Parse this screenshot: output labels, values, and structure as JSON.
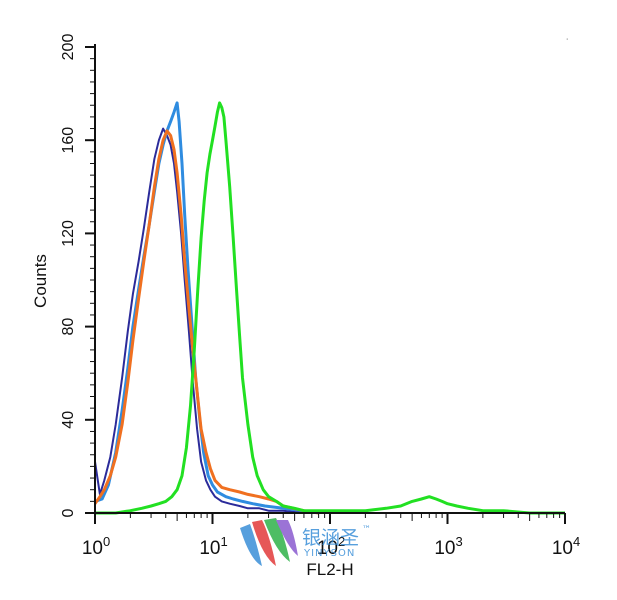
{
  "chart_data": {
    "type": "line",
    "xlabel": "FL2-H",
    "ylabel": "Counts",
    "xscale": "log",
    "xlim": [
      1,
      10000
    ],
    "ylim": [
      0,
      200
    ],
    "x_ticks": [
      {
        "value": 1,
        "base": "10",
        "exp": "0"
      },
      {
        "value": 10,
        "base": "10",
        "exp": "1"
      },
      {
        "value": 100,
        "base": "10",
        "exp": "2"
      },
      {
        "value": 1000,
        "base": "10",
        "exp": "3"
      },
      {
        "value": 10000,
        "base": "10",
        "exp": "4"
      }
    ],
    "y_ticks": [
      "0",
      "40",
      "80",
      "120",
      "160",
      "200"
    ],
    "grid": false,
    "series": [
      {
        "color": "#2b2b9a",
        "x": [
          1.0,
          1.1,
          1.2,
          1.35,
          1.5,
          1.7,
          1.9,
          2.1,
          2.35,
          2.6,
          2.9,
          3.2,
          3.5,
          3.8,
          4.1,
          4.4,
          4.7,
          5.0,
          5.4,
          5.8,
          6.3,
          6.8,
          7.4,
          8.0,
          8.8,
          9.6,
          10.5,
          12.0,
          14.0,
          17.0,
          20.0,
          25.0,
          30.0,
          40.0,
          60.0
        ],
        "y": [
          22,
          8,
          14,
          24,
          38,
          58,
          78,
          94,
          108,
          122,
          138,
          152,
          160,
          165,
          162,
          158,
          150,
          138,
          120,
          100,
          78,
          56,
          36,
          22,
          14,
          10,
          7,
          5,
          4,
          3,
          2,
          2,
          1,
          1,
          0
        ]
      },
      {
        "color": "#2f8ce0",
        "x": [
          1.0,
          1.15,
          1.3,
          1.5,
          1.7,
          1.9,
          2.1,
          2.35,
          2.6,
          2.9,
          3.2,
          3.5,
          3.8,
          4.1,
          4.4,
          4.7,
          5.0,
          5.2,
          5.5,
          5.8,
          6.2,
          6.7,
          7.2,
          7.8,
          8.4,
          9.2,
          10.0,
          11.0,
          13.0,
          15.0,
          18.0,
          22.0,
          28.0,
          40.0,
          60.0
        ],
        "y": [
          5,
          6,
          12,
          26,
          44,
          62,
          80,
          96,
          110,
          124,
          138,
          150,
          158,
          164,
          168,
          172,
          176,
          168,
          150,
          128,
          104,
          80,
          58,
          40,
          26,
          16,
          12,
          9,
          7,
          6,
          5,
          4,
          3,
          2,
          1
        ]
      },
      {
        "color": "#f07020",
        "x": [
          1.0,
          1.1,
          1.2,
          1.35,
          1.5,
          1.7,
          1.9,
          2.1,
          2.35,
          2.6,
          2.9,
          3.2,
          3.5,
          3.8,
          4.1,
          4.4,
          4.7,
          5.0,
          5.4,
          5.8,
          6.3,
          6.8,
          7.4,
          8.0,
          8.8,
          9.6,
          10.5,
          12.0,
          14.0,
          17.0,
          20.0,
          25.0,
          30.0,
          35.0,
          40.0,
          60.0,
          80.0
        ],
        "y": [
          4,
          7,
          10,
          16,
          24,
          38,
          56,
          74,
          92,
          108,
          124,
          140,
          152,
          160,
          164,
          162,
          156,
          146,
          128,
          108,
          88,
          70,
          52,
          36,
          26,
          19,
          14,
          11,
          10,
          9,
          8,
          7,
          6,
          5,
          3,
          1,
          0
        ]
      },
      {
        "color": "#22e022",
        "x": [
          1.0,
          1.5,
          2.0,
          2.5,
          3.0,
          3.5,
          4.0,
          4.5,
          5.0,
          5.5,
          6.0,
          6.5,
          7.0,
          7.5,
          8.0,
          8.5,
          9.0,
          9.5,
          10.0,
          10.5,
          11.0,
          11.5,
          12.0,
          12.5,
          13.0,
          14.0,
          15.0,
          16.0,
          17.0,
          18.0,
          20.0,
          22.0,
          24.0,
          27.0,
          30.0,
          35.0,
          40.0,
          50.0,
          60.0,
          80.0,
          100.0,
          150.0,
          200.0,
          300.0,
          400.0,
          500.0,
          600.0,
          700.0,
          800.0,
          900.0,
          1000.0,
          1200.0,
          1500.0,
          2000.0,
          3000.0,
          5000.0,
          10000.0
        ],
        "y": [
          0,
          0,
          1,
          2,
          3,
          4,
          5,
          7,
          10,
          16,
          28,
          46,
          70,
          96,
          118,
          134,
          146,
          154,
          160,
          166,
          172,
          176,
          174,
          170,
          160,
          140,
          118,
          96,
          76,
          58,
          38,
          24,
          16,
          10,
          7,
          5,
          3,
          2,
          1,
          1,
          1,
          1,
          1,
          2,
          3,
          5,
          6,
          7,
          6,
          5,
          4,
          3,
          2,
          1,
          1,
          0,
          0
        ]
      }
    ]
  },
  "watermark": {
    "chinese": "银涵圣",
    "tm": "™",
    "latin": "YINYSON"
  }
}
